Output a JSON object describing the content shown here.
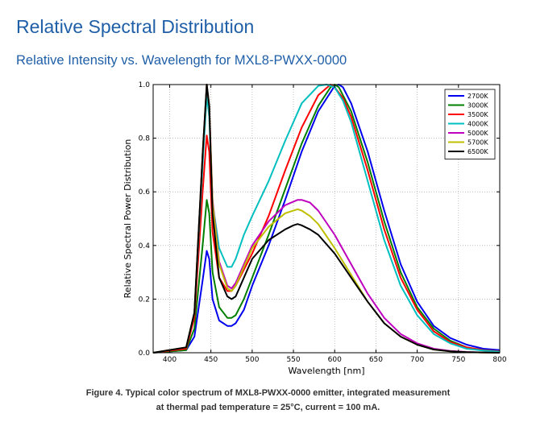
{
  "header": {
    "title": "Relative Spectral Distribution",
    "subtitle": "Relative Intensity vs. Wavelength for MXL8-PWXX-0000"
  },
  "caption": {
    "line1": "Figure 4. Typical color spectrum of MXL8-PWXX-0000 emitter, integrated measurement",
    "line2": "at thermal pad temperature = 25°C, current = 100 mA."
  },
  "chart_data": {
    "type": "line",
    "xlabel": "Wavelength [nm]",
    "ylabel": "Relative Spectral Power Distribution",
    "xlim": [
      380,
      800
    ],
    "ylim": [
      0,
      1.0
    ],
    "xticks": [
      400,
      450,
      500,
      550,
      600,
      650,
      700,
      750,
      800
    ],
    "yticks": [
      0.0,
      0.2,
      0.4,
      0.6,
      0.8,
      1.0
    ],
    "grid": true,
    "legend_position": "top-right",
    "series": [
      {
        "name": "2700K",
        "color": "#0000ee",
        "x": [
          380,
          420,
          430,
          440,
          445,
          448,
          452,
          460,
          470,
          475,
          480,
          490,
          500,
          520,
          540,
          560,
          580,
          600,
          605,
          610,
          620,
          640,
          660,
          680,
          700,
          720,
          740,
          760,
          780,
          800
        ],
        "y": [
          0,
          0.01,
          0.06,
          0.27,
          0.38,
          0.35,
          0.2,
          0.12,
          0.1,
          0.1,
          0.11,
          0.16,
          0.25,
          0.4,
          0.57,
          0.75,
          0.9,
          0.995,
          1.0,
          0.99,
          0.93,
          0.75,
          0.53,
          0.33,
          0.19,
          0.1,
          0.055,
          0.03,
          0.015,
          0.01
        ]
      },
      {
        "name": "3000K",
        "color": "#007f00",
        "x": [
          380,
          420,
          430,
          440,
          445,
          448,
          452,
          460,
          470,
          475,
          480,
          490,
          500,
          520,
          540,
          560,
          580,
          595,
          600,
          605,
          620,
          640,
          660,
          680,
          700,
          720,
          740,
          760,
          780,
          800
        ],
        "y": [
          0,
          0.01,
          0.09,
          0.4,
          0.57,
          0.52,
          0.3,
          0.17,
          0.13,
          0.13,
          0.14,
          0.2,
          0.28,
          0.44,
          0.61,
          0.78,
          0.92,
          0.99,
          1.0,
          0.99,
          0.9,
          0.71,
          0.49,
          0.3,
          0.17,
          0.09,
          0.045,
          0.02,
          0.01,
          0.005
        ]
      },
      {
        "name": "3500K",
        "color": "#ff0000",
        "x": [
          380,
          420,
          430,
          440,
          445,
          448,
          452,
          460,
          470,
          475,
          480,
          490,
          500,
          520,
          540,
          560,
          580,
          595,
          600,
          610,
          620,
          640,
          660,
          680,
          700,
          720,
          740,
          760,
          780,
          800
        ],
        "y": [
          0,
          0.015,
          0.13,
          0.6,
          0.81,
          0.75,
          0.45,
          0.28,
          0.23,
          0.23,
          0.25,
          0.31,
          0.37,
          0.51,
          0.68,
          0.84,
          0.96,
          1.0,
          0.99,
          0.95,
          0.88,
          0.68,
          0.46,
          0.28,
          0.16,
          0.08,
          0.04,
          0.02,
          0.01,
          0.005
        ]
      },
      {
        "name": "4000K",
        "color": "#00bfbf",
        "x": [
          380,
          420,
          430,
          440,
          445,
          448,
          452,
          460,
          470,
          475,
          480,
          490,
          500,
          520,
          540,
          560,
          580,
          590,
          600,
          610,
          620,
          640,
          660,
          680,
          700,
          720,
          740,
          760,
          780,
          800
        ],
        "y": [
          0,
          0.02,
          0.15,
          0.7,
          0.96,
          0.88,
          0.56,
          0.39,
          0.32,
          0.32,
          0.35,
          0.44,
          0.51,
          0.64,
          0.79,
          0.93,
          0.995,
          1.0,
          0.99,
          0.94,
          0.86,
          0.64,
          0.42,
          0.25,
          0.14,
          0.07,
          0.035,
          0.015,
          0.008,
          0.004
        ]
      },
      {
        "name": "5000K",
        "color": "#bf00bf",
        "x": [
          380,
          420,
          430,
          440,
          445,
          448,
          452,
          460,
          470,
          475,
          480,
          490,
          500,
          520,
          540,
          555,
          560,
          570,
          580,
          600,
          620,
          640,
          660,
          680,
          700,
          720,
          740,
          760,
          780,
          800
        ],
        "y": [
          0,
          0.02,
          0.15,
          0.74,
          1.0,
          0.92,
          0.57,
          0.34,
          0.25,
          0.24,
          0.26,
          0.33,
          0.4,
          0.49,
          0.55,
          0.57,
          0.57,
          0.56,
          0.53,
          0.44,
          0.33,
          0.22,
          0.13,
          0.07,
          0.035,
          0.015,
          0.007,
          0.003,
          0.001,
          0
        ]
      },
      {
        "name": "5700K",
        "color": "#bfbf00",
        "x": [
          380,
          420,
          430,
          440,
          445,
          448,
          452,
          460,
          470,
          475,
          480,
          490,
          500,
          520,
          540,
          555,
          560,
          570,
          580,
          600,
          620,
          640,
          660,
          680,
          700,
          720,
          740,
          760,
          780,
          800
        ],
        "y": [
          0,
          0.02,
          0.15,
          0.74,
          1.0,
          0.92,
          0.56,
          0.33,
          0.24,
          0.23,
          0.25,
          0.32,
          0.39,
          0.47,
          0.52,
          0.535,
          0.53,
          0.51,
          0.48,
          0.39,
          0.29,
          0.19,
          0.11,
          0.06,
          0.03,
          0.012,
          0.005,
          0.002,
          0.001,
          0
        ]
      },
      {
        "name": "6500K",
        "color": "#000000",
        "x": [
          380,
          420,
          430,
          440,
          445,
          448,
          452,
          460,
          470,
          475,
          480,
          490,
          500,
          520,
          540,
          550,
          555,
          560,
          570,
          580,
          600,
          620,
          640,
          660,
          680,
          700,
          720,
          740,
          760,
          800
        ],
        "y": [
          0,
          0.02,
          0.15,
          0.74,
          1.0,
          0.92,
          0.52,
          0.28,
          0.21,
          0.2,
          0.21,
          0.28,
          0.35,
          0.42,
          0.46,
          0.475,
          0.48,
          0.475,
          0.46,
          0.44,
          0.37,
          0.28,
          0.19,
          0.11,
          0.06,
          0.03,
          0.012,
          0.005,
          0.002,
          0
        ]
      }
    ]
  }
}
